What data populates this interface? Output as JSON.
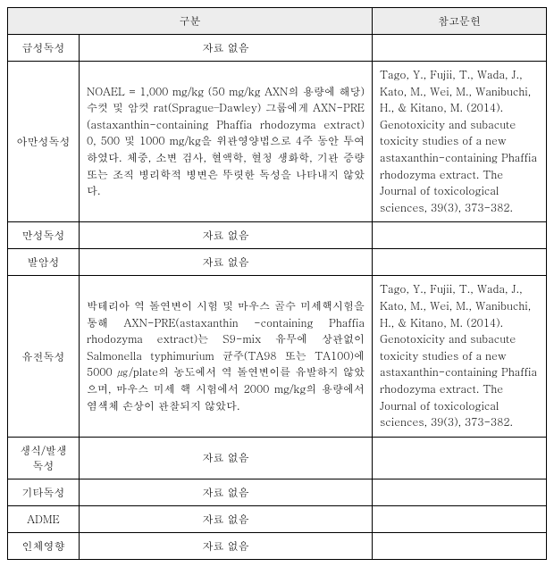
{
  "headers": {
    "category": "구분",
    "reference": "참고문헌"
  },
  "rows": [
    {
      "category": "급성독성",
      "content": "자료 없음",
      "content_is_empty": true,
      "reference": ""
    },
    {
      "category": "아만성독성",
      "content": "NOAEL = 1,000 mg/kg (50 mg/kg AXN의 용량에 해당)\n수컷 및 암컷 rat(Sprague–Dawley) 그룹에게 AXN-PRE (astaxanthin-containing Phaffia rhodozyma extract) 0, 500 및 1000 mg/kg을 위관영양법으로 4주 동안 투여하였다. 체중, 소변 검사, 혈액학, 혈청 생화학, 기관 증량 또는 조직 병리학적 병변은 뚜렷한 독성을 나타내지 않았다.",
      "content_is_empty": false,
      "reference": "Tago, Y., Fujii, T., Wada, J., Kato, M., Wei, M., Wanibuchi, H., & Kitano, M. (2014). Genotoxicity and subacute toxicity studies of a new astaxanthin-containing Phaffia rhodozyma extract. The Journal of toxicological sciences, 39(3), 373-382."
    },
    {
      "category": "만성독성",
      "content": "자료 없음",
      "content_is_empty": true,
      "reference": ""
    },
    {
      "category": "발암성",
      "content": "자료 없음",
      "content_is_empty": true,
      "reference": ""
    },
    {
      "category": "유전독성",
      "content": "박테리아 역 돌연변이 시험 및 마우스 골수 미세핵시험을 통해 AXN-PRE(astaxanthin -containing Phaffia rhodozyma extract)는 S9-mix 유무에 상관없이 Salmonella typhimurium 균주(TA98 또는 TA100)에 5000 ㎍/plate의 농도에서 역 돌연변이를 유발하지 않았으며, 마우스 미세 핵 시험에서 2000 mg/kg의 용량에서 염색체 손상이 관찰되지 않았다.",
      "content_is_empty": false,
      "reference": "Tago, Y., Fujii, T., Wada, J., Kato, M., Wei, M., Wanibuchi, H., & Kitano, M. (2014). Genotoxicity and subacute toxicity studies of a new astaxanthin-containing Phaffia rhodozyma extract. The Journal of toxicological sciences, 39(3), 373-382."
    },
    {
      "category": "생식/발생독성",
      "content": "자료 없음",
      "content_is_empty": true,
      "reference": ""
    },
    {
      "category": "기타독성",
      "content": "자료 없음",
      "content_is_empty": true,
      "reference": ""
    },
    {
      "category": "ADME",
      "content": "자료 없음",
      "content_is_empty": true,
      "reference": ""
    },
    {
      "category": "인체영향",
      "content": "자료 없음",
      "content_is_empty": true,
      "reference": ""
    }
  ]
}
